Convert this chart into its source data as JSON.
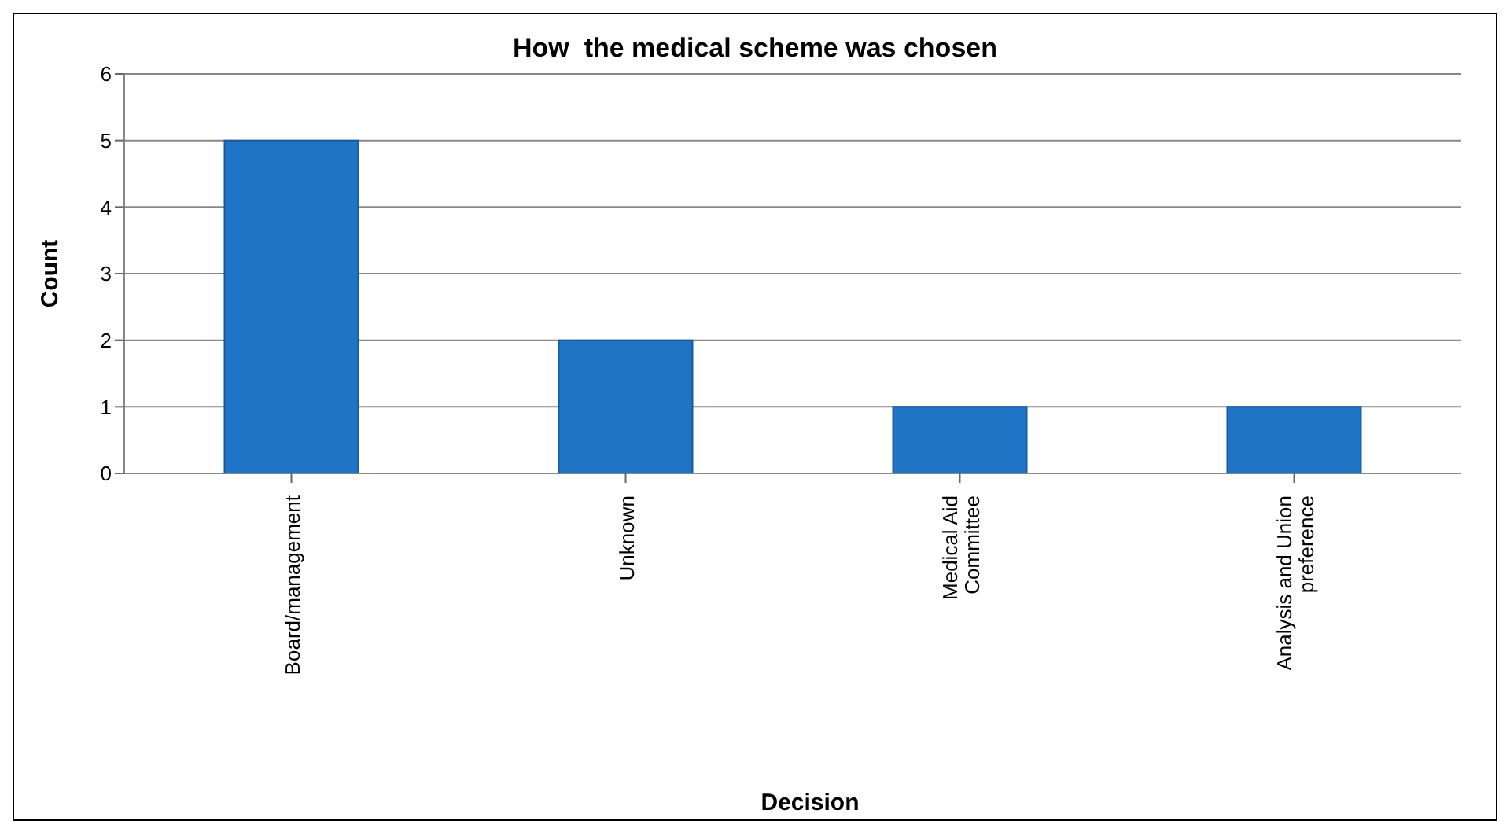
{
  "chart_data": {
    "type": "bar",
    "title": "How  the medical scheme was chosen",
    "xlabel": "Decision",
    "ylabel": "Count",
    "categories": [
      "Board/management",
      "Unknown",
      "Medical Aid Committee",
      "Analysis and Union preference"
    ],
    "values": [
      5,
      2,
      1,
      1
    ],
    "color": "#1f74c6",
    "ylim": [
      0,
      6
    ],
    "yticks": [
      0,
      1,
      2,
      3,
      4,
      5,
      6
    ],
    "grid": "y"
  }
}
